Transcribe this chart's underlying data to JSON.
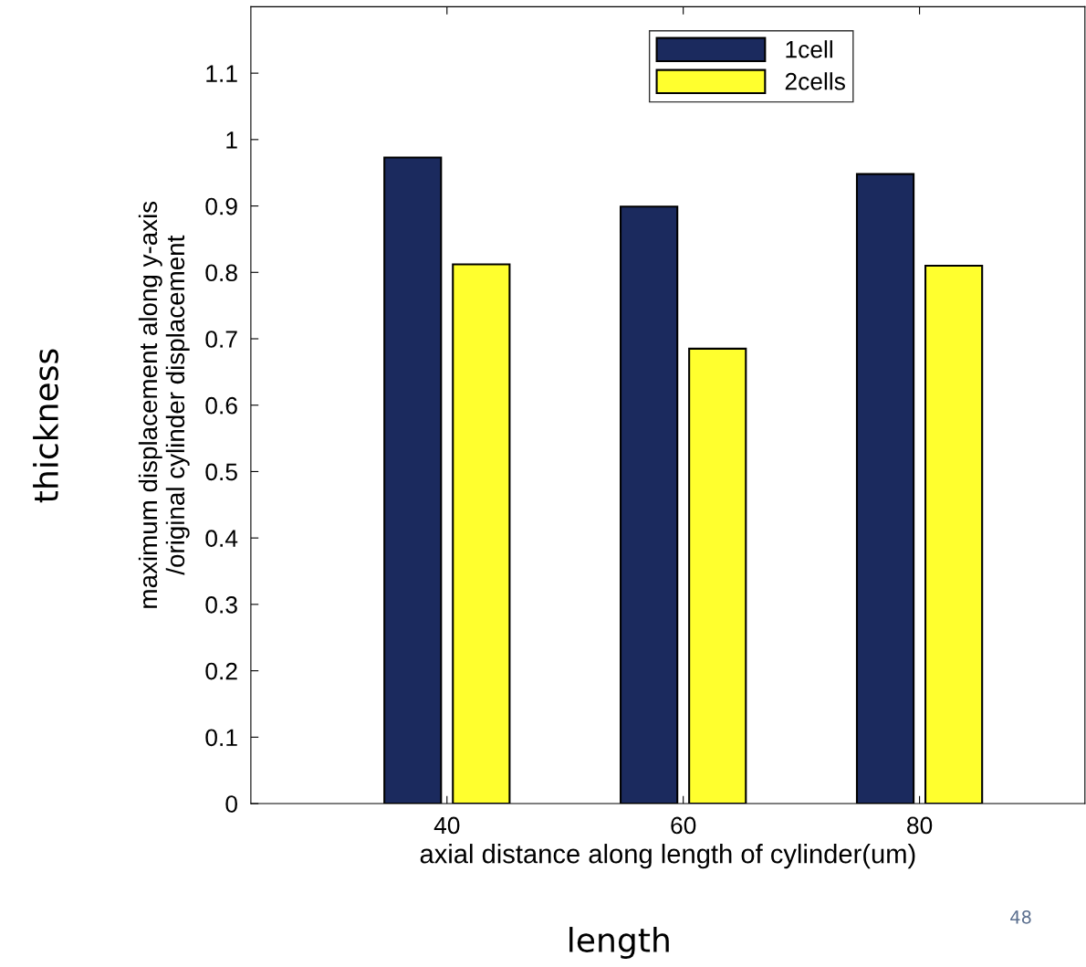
{
  "chart_data": {
    "type": "bar",
    "xlabel": "axial distance along length of cylinder(um)",
    "ylabel": "maximum displacement along y-axis\n/original cylinder displacement",
    "categories": [
      "40",
      "60",
      "80"
    ],
    "series": [
      {
        "name": "1cell",
        "color": "#1b2a5e",
        "values": [
          0.973,
          0.899,
          0.948
        ]
      },
      {
        "name": "2cells",
        "color": "#ffff2e",
        "values": [
          0.812,
          0.685,
          0.81
        ]
      }
    ],
    "ylim": [
      0,
      1.2
    ],
    "yticks": [
      0,
      0.1,
      0.2,
      0.3,
      0.4,
      0.5,
      0.6,
      0.7,
      0.8,
      0.9,
      1,
      1.1
    ],
    "grid": false,
    "legend": "top",
    "annotations": [
      "thickness",
      "length",
      "48"
    ]
  }
}
